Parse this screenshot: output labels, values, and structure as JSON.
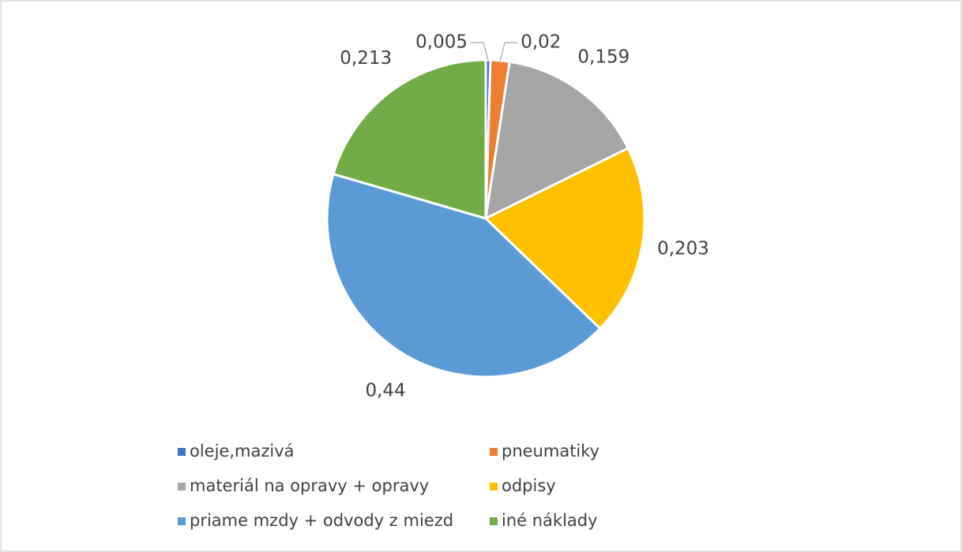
{
  "chart_data": {
    "type": "pie",
    "categories": [
      "oleje,mazivá",
      "pneumatiky",
      "materiál na opravy + opravy",
      "odpisy",
      "priame mzdy + odvody z miezd",
      "iné náklady"
    ],
    "values": [
      0.005,
      0.02,
      0.159,
      0.203,
      0.44,
      0.213
    ],
    "value_labels": [
      "0,005",
      "0,02",
      "0,159",
      "0,203",
      "0,44",
      "0,213"
    ],
    "colors": [
      "#4472c4",
      "#ed7d31",
      "#a5a5a5",
      "#ffc000",
      "#5b9bd5",
      "#70ad47"
    ],
    "legend": "bottom"
  }
}
